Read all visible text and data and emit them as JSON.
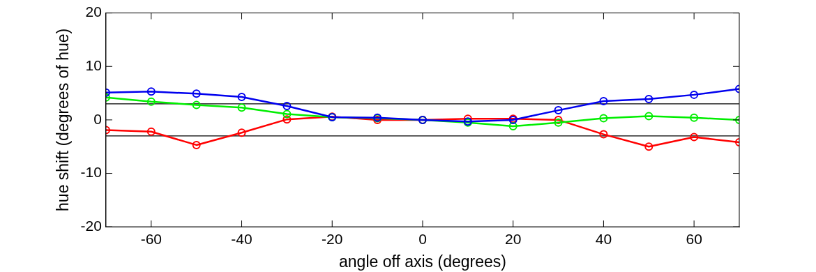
{
  "chart_data": {
    "type": "line",
    "xlabel": "angle off axis (degrees)",
    "ylabel": "hue shift (degrees of hue)",
    "x": [
      -70,
      -60,
      -50,
      -40,
      -30,
      -20,
      -10,
      0,
      10,
      20,
      30,
      40,
      50,
      60,
      70
    ],
    "xlim": [
      -70,
      70
    ],
    "xticks": [
      -60,
      -40,
      -20,
      0,
      20,
      40,
      60
    ],
    "ylim": [
      -20,
      20
    ],
    "yticks": [
      -20,
      -10,
      0,
      10,
      20
    ],
    "grid": false,
    "legend": false,
    "marker": "circle",
    "line_style": "solid",
    "ref_lines": [
      {
        "axis": "y",
        "value": 3,
        "color": "#000000"
      },
      {
        "axis": "y",
        "value": -3,
        "color": "#000000"
      }
    ],
    "series": [
      {
        "color": "#ff0000",
        "values": [
          -1.9,
          -2.2,
          -4.7,
          -2.4,
          0.1,
          0.6,
          0,
          0,
          0.2,
          0.2,
          0,
          -2.7,
          -5,
          -3.2,
          -4.2
        ]
      },
      {
        "color": "#00ee00",
        "values": [
          4.2,
          3.4,
          2.8,
          2.3,
          1.1,
          0.5,
          0.3,
          0,
          -0.5,
          -1.2,
          -0.5,
          0.3,
          0.7,
          0.4,
          0
        ]
      },
      {
        "color": "#0000ee",
        "values": [
          5.1,
          5.3,
          4.9,
          4.3,
          2.6,
          0.5,
          0.4,
          0,
          -0.3,
          0,
          1.8,
          3.5,
          3.9,
          4.7,
          5.8
        ]
      }
    ]
  }
}
